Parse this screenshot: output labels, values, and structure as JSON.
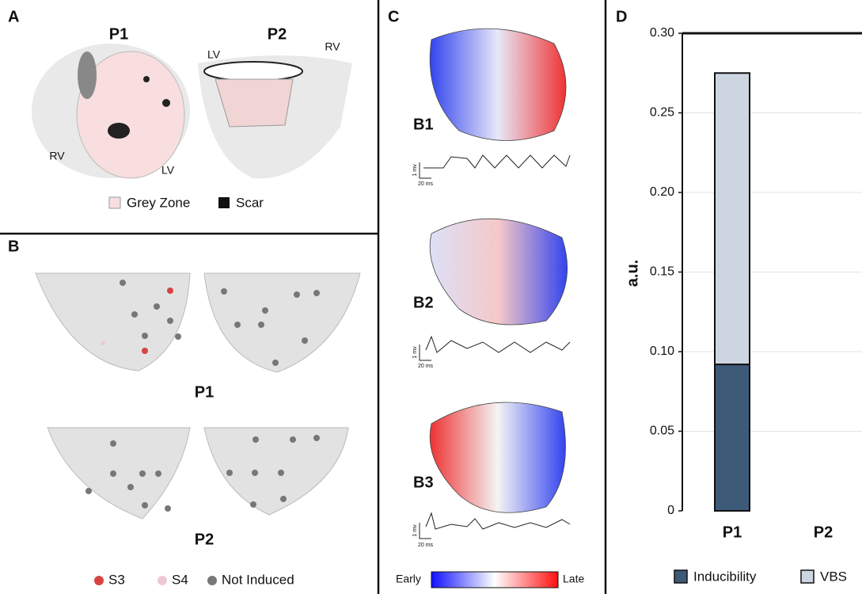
{
  "panel_a": {
    "label": "A",
    "p1": "P1",
    "p2": "P2",
    "p1_labels": [
      "RV",
      "LV"
    ],
    "p2_labels": [
      "LV",
      "RV"
    ],
    "legend": [
      "Grey Zone",
      "Scar"
    ]
  },
  "panel_b": {
    "label": "B",
    "rows": [
      "P1",
      "P2"
    ],
    "legend": [
      "S3",
      "S4",
      "Not Induced"
    ]
  },
  "panel_c": {
    "label": "C",
    "maps": [
      {
        "label": "B1",
        "scale_v": "1 mv",
        "scale_t": "20 ms"
      },
      {
        "label": "B2",
        "scale_v": "1 mv",
        "scale_t": "20 ms"
      },
      {
        "label": "B3",
        "scale_v": "1 mv",
        "scale_t": "20 ms"
      }
    ],
    "colorbar": [
      "Early",
      "Late"
    ]
  },
  "chart_data": {
    "type": "bar",
    "stacked": true,
    "panel_label": "D",
    "ylabel": "a.u.",
    "categories": [
      "P1",
      "P2"
    ],
    "series": [
      {
        "name": "Inducibility",
        "color": "#3d5a78",
        "values": [
          0.092,
          0
        ]
      },
      {
        "name": "VBS",
        "color": "#cdd6e0",
        "values": [
          0.183,
          0
        ]
      }
    ],
    "ylim": [
      0,
      0.3
    ],
    "yticks": [
      0,
      0.05,
      {
        "value": 0.1,
        "label": "0.10"
      },
      0.15,
      {
        "value": 0.2,
        "label": "0.20"
      },
      0.25,
      {
        "value": 0.3,
        "label": "0.30"
      }
    ],
    "grid": true
  }
}
